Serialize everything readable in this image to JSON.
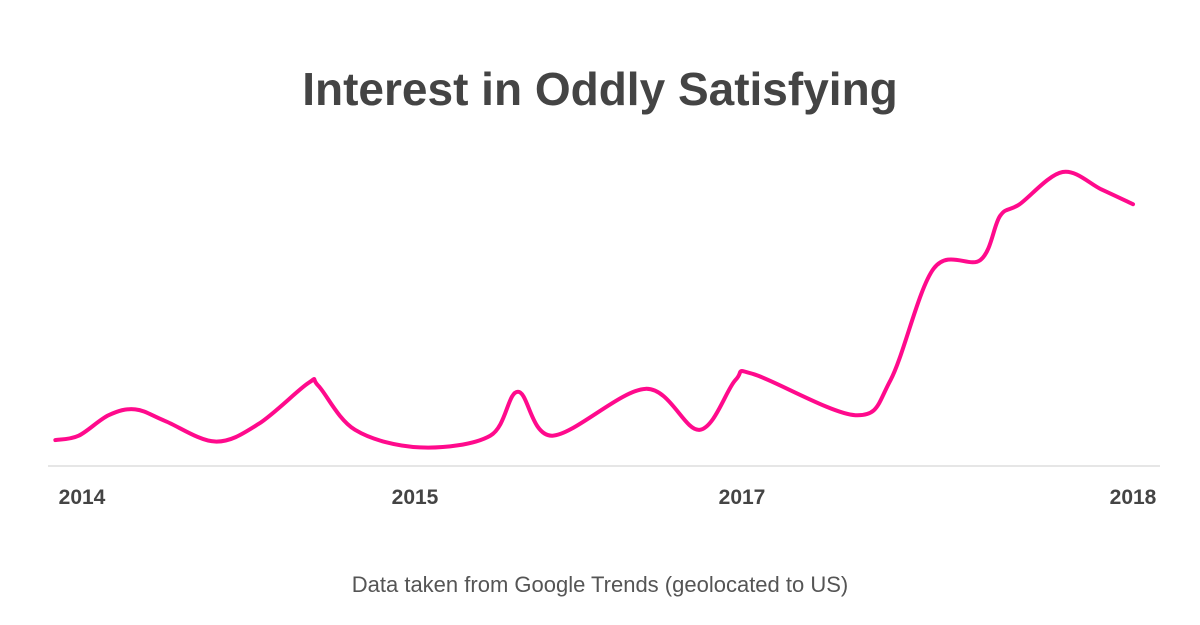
{
  "chart_data": {
    "type": "line",
    "title": "Interest in Oddly Satisfying",
    "subtitle": "Data taken from Google Trends (geolocated to US)",
    "xlabel": "",
    "ylabel": "",
    "x_ticks": [
      {
        "label": "2014",
        "value": 2014
      },
      {
        "label": "2015",
        "value": 2015
      },
      {
        "label": "2017",
        "value": 2017
      },
      {
        "label": "2018",
        "value": 2018
      }
    ],
    "ylim": [
      0,
      100
    ],
    "grid": false,
    "line_color": "#ff0a8c",
    "series": [
      {
        "x": [
          2013.92,
          2013.99,
          2014.08,
          2014.16,
          2014.25,
          2014.4,
          2014.53,
          2014.68,
          2014.71,
          2014.82,
          2015.03,
          2015.46,
          2015.63,
          2015.84,
          2016.41,
          2016.74,
          2016.96,
          2017.03,
          2017.29,
          2017.38,
          2017.49,
          2017.61,
          2017.66,
          2017.71,
          2017.82,
          2017.92,
          2018.0
        ],
        "y": [
          8.5,
          10,
          17,
          19,
          15,
          8,
          14,
          28,
          27,
          12,
          6,
          10,
          25,
          10,
          26,
          12,
          29,
          31,
          17,
          29,
          67,
          70,
          85,
          89,
          100,
          94,
          89
        ]
      }
    ]
  }
}
